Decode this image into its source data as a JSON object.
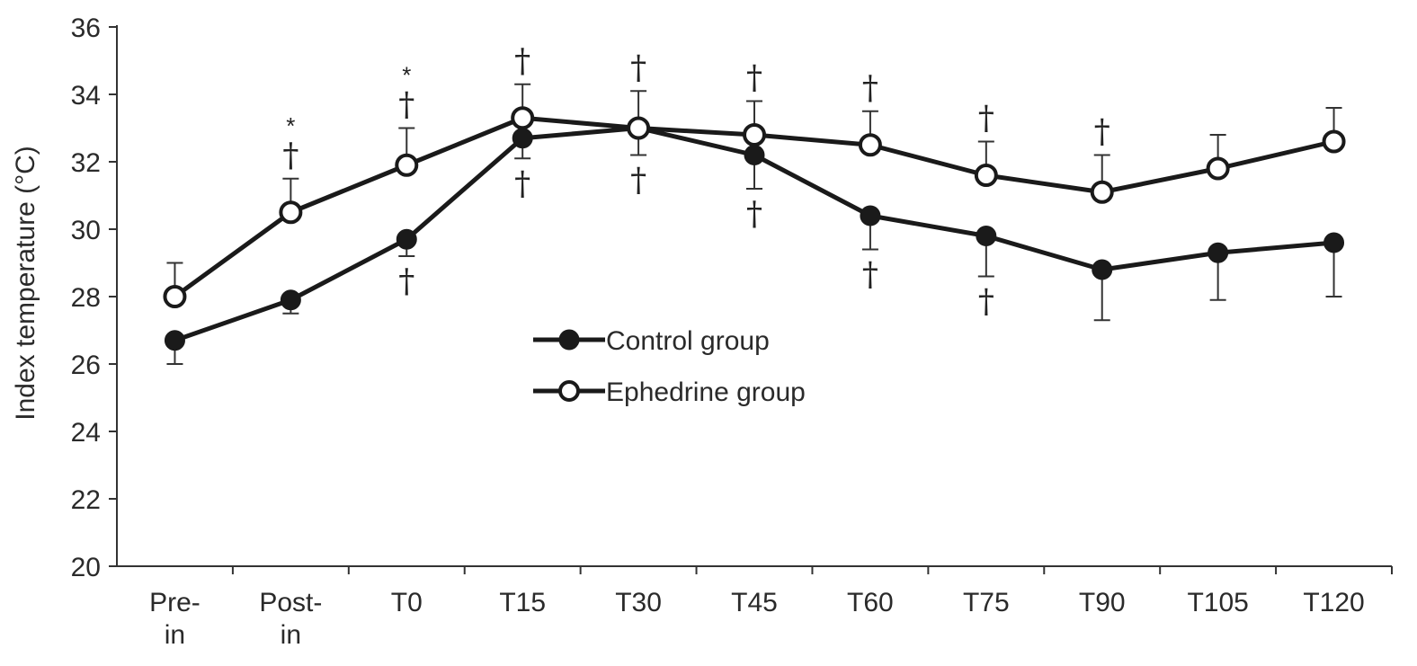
{
  "chart_data": {
    "type": "line",
    "title": "",
    "xlabel": "",
    "ylabel": "Index temperature (°C)",
    "ylim": [
      20,
      36
    ],
    "yticks": [
      20,
      22,
      24,
      26,
      28,
      30,
      32,
      34,
      36
    ],
    "categories": [
      [
        "Pre-",
        "in"
      ],
      [
        "Post-",
        "in"
      ],
      [
        "T0"
      ],
      [
        "T15"
      ],
      [
        "T30"
      ],
      [
        "T45"
      ],
      [
        "T60"
      ],
      [
        "T75"
      ],
      [
        "T90"
      ],
      [
        "T105"
      ],
      [
        "T120"
      ]
    ],
    "legend_position": "center",
    "series": [
      {
        "name": "Control group",
        "marker": "filled-circle",
        "values": [
          26.7,
          27.9,
          29.7,
          32.7,
          33.0,
          32.2,
          30.4,
          29.8,
          28.8,
          29.3,
          29.6
        ],
        "errors": [
          0.7,
          0.4,
          0.5,
          0.6,
          0.8,
          1.0,
          1.0,
          1.2,
          1.5,
          1.4,
          1.6
        ],
        "error_direction": "down",
        "annotations": [
          [],
          [],
          [
            "†"
          ],
          [
            "†"
          ],
          [
            "†"
          ],
          [
            "†"
          ],
          [
            "†"
          ],
          [
            "†"
          ],
          [],
          [],
          []
        ]
      },
      {
        "name": "Ephedrine group",
        "marker": "open-circle",
        "values": [
          28.0,
          30.5,
          31.9,
          33.3,
          33.0,
          32.8,
          32.5,
          31.6,
          31.1,
          31.8,
          32.6
        ],
        "errors": [
          1.0,
          1.0,
          1.1,
          1.0,
          1.1,
          1.0,
          1.0,
          1.0,
          1.1,
          1.0,
          1.0
        ],
        "error_direction": "up",
        "annotations": [
          [],
          [
            "*",
            "†"
          ],
          [
            "*",
            "†"
          ],
          [
            "†"
          ],
          [
            "†"
          ],
          [
            "†"
          ],
          [
            "†"
          ],
          [
            "†"
          ],
          [
            "†"
          ],
          [],
          []
        ]
      }
    ]
  }
}
